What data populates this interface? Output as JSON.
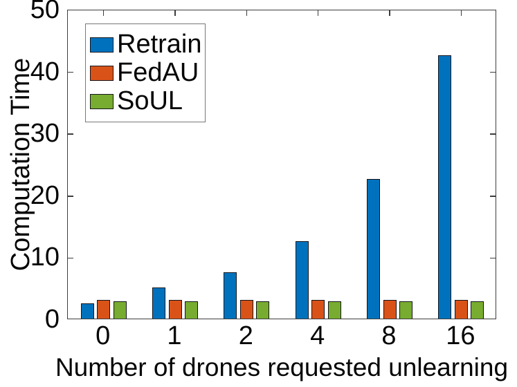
{
  "figure": {
    "background": "#ffffff",
    "axis_color": "#3c3c3c",
    "text_color": "#050505"
  },
  "chart_data": {
    "type": "bar",
    "title": "",
    "xlabel": "Number of drones requested unlearning",
    "ylabel": "Computation Time",
    "categories": [
      "0",
      "1",
      "2",
      "4",
      "8",
      "16"
    ],
    "series": [
      {
        "name": "Retrain",
        "color": "#0072BD",
        "values": [
          2.5,
          5,
          7.5,
          12.5,
          22.5,
          42.5
        ]
      },
      {
        "name": "FedAU",
        "color": "#D95319",
        "values": [
          3,
          3,
          3,
          3,
          3,
          3
        ]
      },
      {
        "name": "SoUL",
        "color": "#77AC30",
        "values": [
          2.8,
          2.8,
          2.8,
          2.8,
          2.8,
          2.8
        ]
      }
    ],
    "ylim": [
      0,
      50
    ],
    "yticks": [
      0,
      10,
      20,
      30,
      40,
      50
    ],
    "legend_position": "top-left-inside",
    "grid": false,
    "bar_edge_color": "#14141a"
  }
}
